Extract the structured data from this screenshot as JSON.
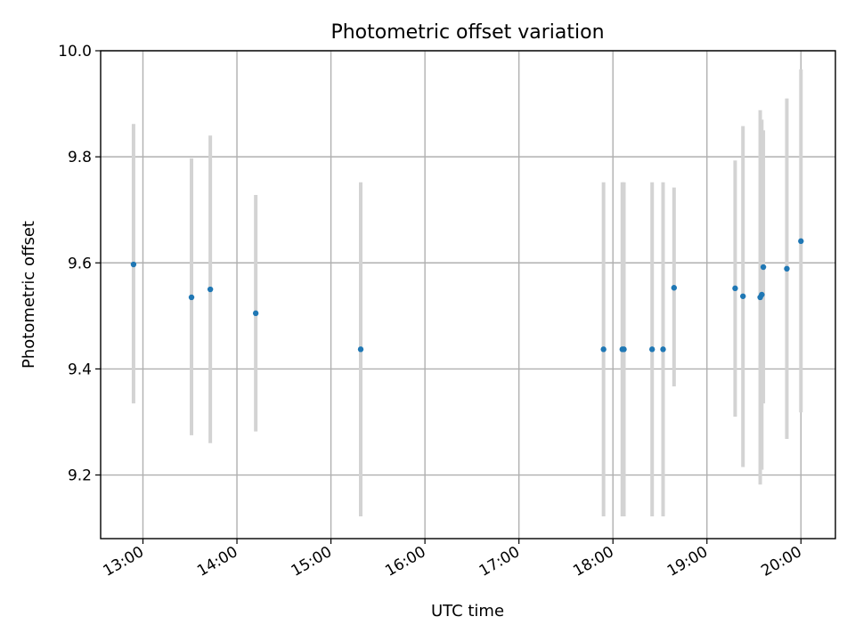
{
  "chart_data": {
    "type": "scatter",
    "title": "Photometric offset variation",
    "xlabel": "UTC time",
    "ylabel": "Photometric offset",
    "x_axis": {
      "type": "time",
      "lim": [
        "12:33",
        "20:22"
      ],
      "ticks": [
        "13:00",
        "14:00",
        "15:00",
        "16:00",
        "17:00",
        "18:00",
        "19:00",
        "20:00"
      ]
    },
    "y_axis": {
      "lim": [
        9.08,
        10.0
      ],
      "ticks": [
        9.2,
        9.4,
        9.6,
        9.8,
        10.0
      ],
      "tick_labels": [
        "9.2",
        "9.4",
        "9.6",
        "9.8",
        "10.0"
      ]
    },
    "grid": true,
    "series": [
      {
        "marker_color": "#1f77b4",
        "errorbar_color": "#d3d3d3",
        "points": [
          {
            "x": "12:54",
            "y": 9.597,
            "yerr_low": 9.335,
            "yerr_high": 9.862
          },
          {
            "x": "13:31",
            "y": 9.535,
            "yerr_low": 9.275,
            "yerr_high": 9.797
          },
          {
            "x": "13:43",
            "y": 9.55,
            "yerr_low": 9.26,
            "yerr_high": 9.84
          },
          {
            "x": "14:12",
            "y": 9.505,
            "yerr_low": 9.282,
            "yerr_high": 9.728
          },
          {
            "x": "15:19",
            "y": 9.437,
            "yerr_low": 9.122,
            "yerr_high": 9.752
          },
          {
            "x": "17:54",
            "y": 9.437,
            "yerr_low": 9.122,
            "yerr_high": 9.752
          },
          {
            "x": "18:06",
            "y": 9.437,
            "yerr_low": 9.122,
            "yerr_high": 9.752
          },
          {
            "x": "18:07",
            "y": 9.437,
            "yerr_low": 9.122,
            "yerr_high": 9.752
          },
          {
            "x": "18:25",
            "y": 9.437,
            "yerr_low": 9.122,
            "yerr_high": 9.752
          },
          {
            "x": "18:32",
            "y": 9.437,
            "yerr_low": 9.122,
            "yerr_high": 9.752
          },
          {
            "x": "18:39",
            "y": 9.553,
            "yerr_low": 9.367,
            "yerr_high": 9.742
          },
          {
            "x": "19:18",
            "y": 9.552,
            "yerr_low": 9.31,
            "yerr_high": 9.793
          },
          {
            "x": "19:23",
            "y": 9.537,
            "yerr_low": 9.215,
            "yerr_high": 9.858
          },
          {
            "x": "19:34",
            "y": 9.535,
            "yerr_low": 9.182,
            "yerr_high": 9.888
          },
          {
            "x": "19:35",
            "y": 9.54,
            "yerr_low": 9.21,
            "yerr_high": 9.87
          },
          {
            "x": "19:36",
            "y": 9.592,
            "yerr_low": 9.335,
            "yerr_high": 9.85
          },
          {
            "x": "19:51",
            "y": 9.589,
            "yerr_low": 9.268,
            "yerr_high": 9.91
          },
          {
            "x": "20:00",
            "y": 9.641,
            "yerr_low": 9.318,
            "yerr_high": 9.965
          }
        ]
      }
    ]
  }
}
